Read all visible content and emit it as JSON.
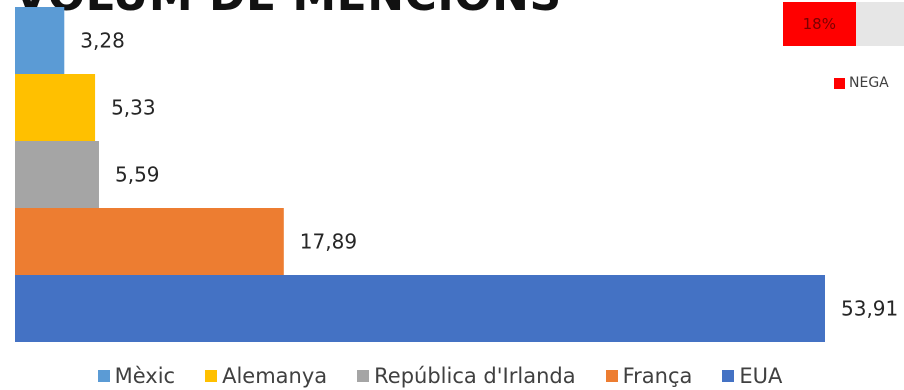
{
  "chart_data": {
    "type": "bar",
    "orientation": "horizontal",
    "title": "VOLUM DE MENCIONS",
    "categories": [
      "Mèxic",
      "Alemanya",
      "República d'Irlanda",
      "França",
      "EUA"
    ],
    "values": [
      3.28,
      5.33,
      5.59,
      17.89,
      53.91
    ],
    "data_labels": [
      "3,28",
      "5,33",
      "5,59",
      "17,89",
      "53,91"
    ],
    "colors": [
      "#5b9bd5",
      "#ffc000",
      "#a5a5a5",
      "#ed7d31",
      "#4472c4"
    ],
    "xlim": [
      0,
      53.91
    ],
    "grid": false,
    "legend_position": "bottom"
  },
  "side_panel": {
    "gauge_label": "18%",
    "gauge_value": 0.18,
    "gauge_color": "#ff0000",
    "legend_label": "NEGA",
    "legend_color": "#ff0000"
  }
}
